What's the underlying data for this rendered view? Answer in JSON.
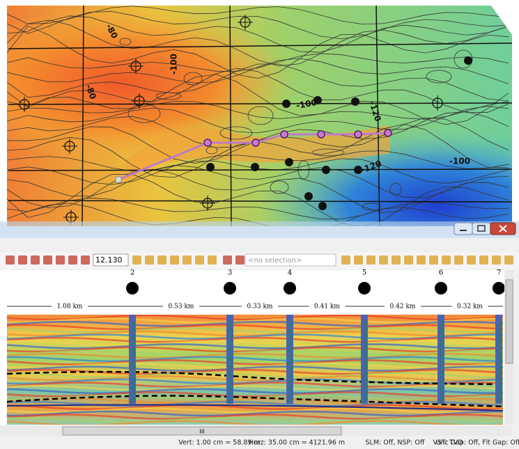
{
  "map": {
    "contour_labels": [
      "-80",
      "-80",
      "-100",
      "-100",
      "-120",
      "-120",
      "-100"
    ]
  },
  "toolbar": {
    "zoom": "12.130",
    "selection": "<no selection>"
  },
  "section": {
    "wells": [
      "2",
      "3",
      "4",
      "5",
      "6",
      "7"
    ],
    "distances": [
      "1.08 km",
      "0.53 km",
      "0.33 km",
      "0.41 km",
      "0.42 km",
      "0.32 km"
    ]
  },
  "scrollbar": {
    "grip": "III"
  },
  "status_bar": {
    "items": [
      "Vert: 1.00 cm = 58.89 m",
      "Horz: 35.00 cm = 4121.96 m",
      "SLM: Off, NSP: Off",
      "VST: TVD",
      "Unc Gap: Off, Flt Gap: Off"
    ]
  }
}
